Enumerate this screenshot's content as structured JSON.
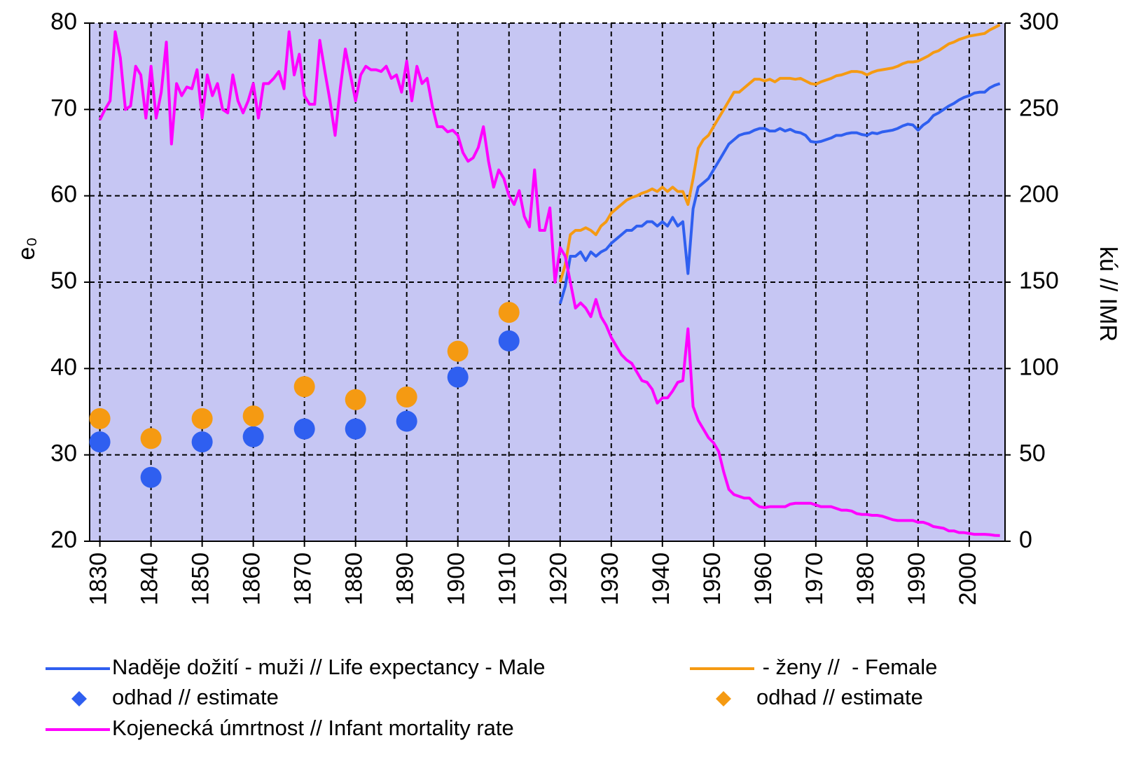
{
  "chart_data": {
    "type": "line",
    "y_label": "e₀",
    "y2_label": "kú // IMR",
    "xlim": [
      1828,
      2007
    ],
    "xticks": [
      1830,
      1840,
      1850,
      1860,
      1870,
      1880,
      1890,
      1900,
      1910,
      1920,
      1930,
      1940,
      1950,
      1960,
      1970,
      1980,
      1990,
      2000
    ],
    "ylim": [
      20,
      80
    ],
    "yticks": [
      20,
      30,
      40,
      50,
      60,
      70,
      80
    ],
    "y2lim": [
      0,
      300
    ],
    "y2ticks": [
      0,
      50,
      100,
      150,
      200,
      250,
      300
    ],
    "grid": true,
    "legend": "bottom",
    "series": [
      {
        "name": "Naděje dožití - muži // Life expectancy - Male",
        "type": "line",
        "color": "#2f5ff0",
        "x": [
          1920,
          1921,
          1922,
          1923,
          1924,
          1925,
          1926,
          1927,
          1928,
          1929,
          1930,
          1931,
          1932,
          1933,
          1934,
          1935,
          1936,
          1937,
          1938,
          1939,
          1940,
          1941,
          1942,
          1943,
          1944,
          1945,
          1946,
          1947,
          1948,
          1949,
          1950,
          1951,
          1952,
          1953,
          1954,
          1955,
          1956,
          1957,
          1958,
          1959,
          1960,
          1961,
          1962,
          1963,
          1964,
          1965,
          1966,
          1967,
          1968,
          1969,
          1970,
          1971,
          1972,
          1973,
          1974,
          1975,
          1976,
          1977,
          1978,
          1979,
          1980,
          1981,
          1982,
          1983,
          1984,
          1985,
          1986,
          1987,
          1988,
          1989,
          1990,
          1991,
          1992,
          1993,
          1994,
          1995,
          1996,
          1997,
          1998,
          1999,
          2000,
          2001,
          2002,
          2003,
          2004,
          2005,
          2006
        ],
        "values": [
          47.5,
          49.5,
          53,
          53,
          53.5,
          52.5,
          53.5,
          53,
          53.5,
          53.8,
          54.5,
          55,
          55.5,
          56,
          56,
          56.5,
          56.5,
          57,
          57,
          56.5,
          57,
          56.5,
          57.5,
          56.5,
          57,
          51,
          58.5,
          61,
          61.5,
          62,
          63,
          64,
          65,
          66,
          66.5,
          67,
          67.2,
          67.3,
          67.6,
          67.8,
          67.8,
          67.5,
          67.5,
          67.8,
          67.5,
          67.7,
          67.4,
          67.3,
          67,
          66.3,
          66.2,
          66.3,
          66.5,
          66.7,
          67,
          67,
          67.2,
          67.3,
          67.3,
          67.1,
          67,
          67.3,
          67.2,
          67.4,
          67.5,
          67.6,
          67.8,
          68.1,
          68.3,
          68.2,
          67.6,
          68.2,
          68.6,
          69.3,
          69.6,
          70,
          70.4,
          70.7,
          71.1,
          71.4,
          71.6,
          71.9,
          72,
          72,
          72.5,
          72.8,
          73
        ]
      },
      {
        "name": " - ženy //  - Female",
        "type": "line",
        "color": "#f59a12",
        "x": [
          1920,
          1921,
          1922,
          1923,
          1924,
          1925,
          1926,
          1927,
          1928,
          1929,
          1930,
          1931,
          1932,
          1933,
          1934,
          1935,
          1936,
          1937,
          1938,
          1939,
          1940,
          1941,
          1942,
          1943,
          1944,
          1945,
          1946,
          1947,
          1948,
          1949,
          1950,
          1951,
          1952,
          1953,
          1954,
          1955,
          1956,
          1957,
          1958,
          1959,
          1960,
          1961,
          1962,
          1963,
          1964,
          1965,
          1966,
          1967,
          1968,
          1969,
          1970,
          1971,
          1972,
          1973,
          1974,
          1975,
          1976,
          1977,
          1978,
          1979,
          1980,
          1981,
          1982,
          1983,
          1984,
          1985,
          1986,
          1987,
          1988,
          1989,
          1990,
          1991,
          1992,
          1993,
          1994,
          1995,
          1996,
          1997,
          1998,
          1999,
          2000,
          2001,
          2002,
          2003,
          2004,
          2005,
          2006
        ],
        "values": [
          50,
          52,
          55.5,
          56,
          56,
          56.3,
          56,
          55.5,
          56.5,
          57,
          58,
          58.5,
          59,
          59.5,
          59.8,
          60,
          60.3,
          60.5,
          60.8,
          60.5,
          61,
          60.5,
          61,
          60.5,
          60.5,
          59,
          62,
          65.5,
          66.5,
          67,
          68,
          69,
          70,
          71,
          72,
          72,
          72.5,
          73,
          73.5,
          73.5,
          73.3,
          73.5,
          73.2,
          73.6,
          73.6,
          73.6,
          73.5,
          73.6,
          73.3,
          73,
          72.9,
          73.2,
          73.4,
          73.6,
          73.9,
          74,
          74.2,
          74.4,
          74.4,
          74.3,
          74,
          74.3,
          74.5,
          74.6,
          74.7,
          74.8,
          75,
          75.3,
          75.5,
          75.5,
          75.6,
          75.9,
          76.2,
          76.6,
          76.8,
          77.2,
          77.6,
          77.8,
          78.1,
          78.3,
          78.5,
          78.6,
          78.7,
          78.8,
          79.2,
          79.5,
          79.8
        ]
      },
      {
        "name": "odhad // estimate",
        "type": "scatter",
        "color": "#2f5ff0",
        "x": [
          1830,
          1840,
          1850,
          1860,
          1870,
          1880,
          1890,
          1900,
          1910
        ],
        "values": [
          31.5,
          27.4,
          31.5,
          32.1,
          33,
          33,
          33.9,
          39,
          43.2
        ]
      },
      {
        "name": "odhad // estimate",
        "type": "scatter",
        "color": "#f59a12",
        "x": [
          1830,
          1840,
          1850,
          1860,
          1870,
          1880,
          1890,
          1900,
          1910
        ],
        "values": [
          34.2,
          31.9,
          34.2,
          34.5,
          37.9,
          36.4,
          36.7,
          42,
          46.5
        ]
      },
      {
        "name": "Kojenecká úmrtnost // Infant mortality rate",
        "type": "line",
        "color": "#ff00ff",
        "axis": "y2",
        "x": [
          1830,
          1831,
          1832,
          1833,
          1834,
          1835,
          1836,
          1837,
          1838,
          1839,
          1840,
          1841,
          1842,
          1843,
          1844,
          1845,
          1846,
          1847,
          1848,
          1849,
          1850,
          1851,
          1852,
          1853,
          1854,
          1855,
          1856,
          1857,
          1858,
          1859,
          1860,
          1861,
          1862,
          1863,
          1864,
          1865,
          1866,
          1867,
          1868,
          1869,
          1870,
          1871,
          1872,
          1873,
          1874,
          1875,
          1876,
          1877,
          1878,
          1879,
          1880,
          1881,
          1882,
          1883,
          1884,
          1885,
          1886,
          1887,
          1888,
          1889,
          1890,
          1891,
          1892,
          1893,
          1894,
          1895,
          1896,
          1897,
          1898,
          1899,
          1900,
          1901,
          1902,
          1903,
          1904,
          1905,
          1906,
          1907,
          1908,
          1909,
          1910,
          1911,
          1912,
          1913,
          1914,
          1915,
          1916,
          1917,
          1918,
          1919,
          1920,
          1921,
          1922,
          1923,
          1924,
          1925,
          1926,
          1927,
          1928,
          1929,
          1930,
          1931,
          1932,
          1933,
          1934,
          1935,
          1936,
          1937,
          1938,
          1939,
          1940,
          1941,
          1942,
          1943,
          1944,
          1945,
          1946,
          1947,
          1948,
          1949,
          1950,
          1951,
          1952,
          1953,
          1954,
          1955,
          1956,
          1957,
          1958,
          1959,
          1960,
          1961,
          1962,
          1963,
          1964,
          1965,
          1966,
          1967,
          1968,
          1969,
          1970,
          1971,
          1972,
          1973,
          1974,
          1975,
          1976,
          1977,
          1978,
          1979,
          1980,
          1981,
          1982,
          1983,
          1984,
          1985,
          1986,
          1987,
          1988,
          1989,
          1990,
          1991,
          1992,
          1993,
          1994,
          1995,
          1996,
          1997,
          1998,
          1999,
          2000,
          2001,
          2002,
          2003,
          2004,
          2005,
          2006
        ],
        "values": [
          244,
          250,
          255,
          295,
          280,
          250,
          252,
          275,
          270,
          245,
          275,
          245,
          260,
          289,
          230,
          265,
          258,
          263,
          262,
          273,
          245,
          270,
          258,
          265,
          250,
          248,
          270,
          255,
          248,
          255,
          265,
          245,
          265,
          265,
          268,
          272,
          262,
          295,
          270,
          282,
          258,
          253,
          253,
          290,
          272,
          255,
          235,
          262,
          285,
          270,
          255,
          270,
          275,
          273,
          273,
          272,
          275,
          268,
          270,
          260,
          278,
          255,
          275,
          265,
          268,
          252,
          240,
          240,
          237,
          238,
          235,
          225,
          220,
          222,
          228,
          240,
          220,
          205,
          215,
          210,
          200,
          195,
          203,
          188,
          182,
          215,
          180,
          180,
          193,
          150,
          170,
          165,
          150,
          135,
          138,
          135,
          130,
          140,
          130,
          125,
          118,
          113,
          108,
          105,
          103,
          98,
          93,
          92,
          88,
          80,
          83,
          83,
          87,
          92,
          93,
          123,
          78,
          70,
          65,
          60,
          57,
          52,
          40,
          30,
          27,
          26,
          25,
          25,
          22,
          20,
          19.5,
          20,
          20,
          20,
          20,
          21.5,
          22,
          22,
          22,
          22,
          21,
          20,
          20,
          20,
          19,
          18,
          18,
          17.5,
          16,
          15.5,
          15.5,
          15,
          15,
          14.5,
          13.5,
          12.5,
          12,
          12,
          12,
          12,
          11,
          11,
          10,
          8.5,
          8,
          7.5,
          6,
          6,
          5,
          5,
          4.5,
          4,
          4,
          4,
          3.8,
          3.4,
          3.3
        ]
      }
    ]
  }
}
